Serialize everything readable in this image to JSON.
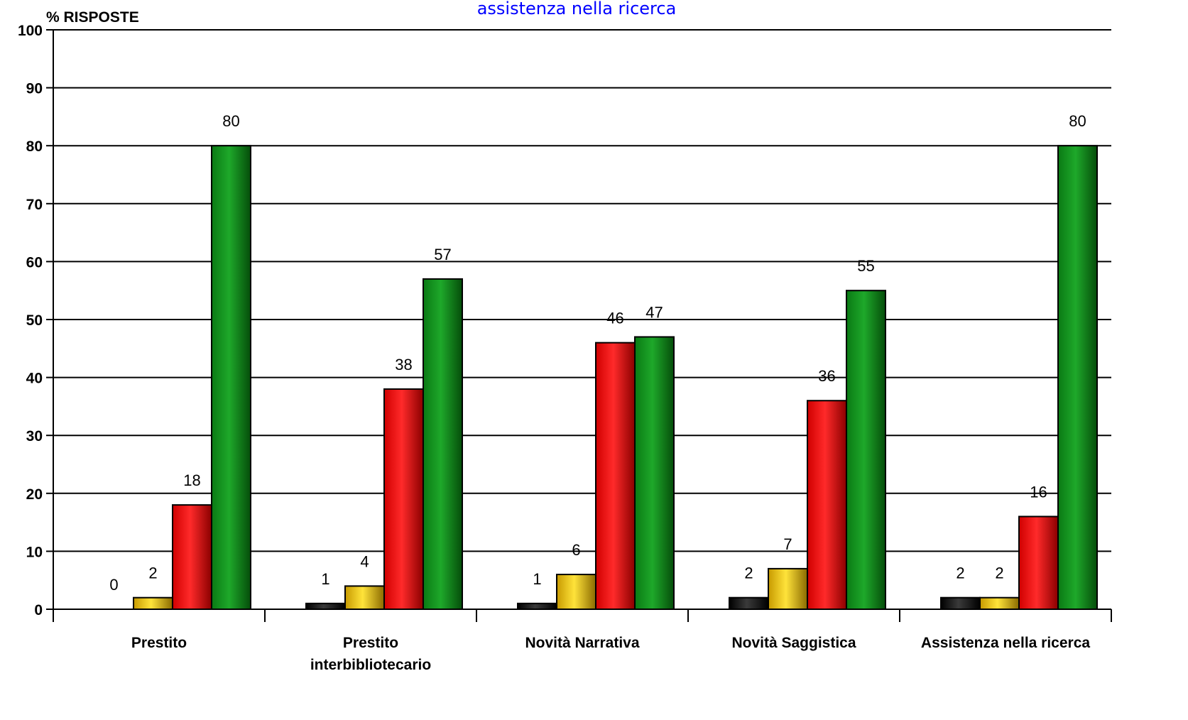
{
  "chart_data": {
    "type": "bar",
    "title": "assistenza nella ricerca",
    "ylabel": "% RISPOSTE",
    "xlabel": "",
    "ylim": [
      0,
      100
    ],
    "yticks": [
      0,
      10,
      20,
      30,
      40,
      50,
      60,
      70,
      80,
      90,
      100
    ],
    "grid": true,
    "categories": [
      [
        "Prestito"
      ],
      [
        "Prestito",
        "interbibliotecario"
      ],
      [
        "Novità Narrativa"
      ],
      [
        "Novità Saggistica"
      ],
      [
        "Assistenza nella ricerca"
      ]
    ],
    "series": [
      {
        "color": "#111111",
        "values": [
          0,
          1,
          1,
          2,
          2
        ]
      },
      {
        "color": "#e8c20a",
        "values": [
          2,
          4,
          6,
          7,
          2
        ]
      },
      {
        "color": "#e21010",
        "values": [
          18,
          38,
          46,
          36,
          16
        ]
      },
      {
        "color": "#108a1a",
        "values": [
          80,
          57,
          47,
          55,
          80
        ]
      }
    ],
    "data_labels": [
      [
        "0",
        "1",
        "1",
        "2",
        "2"
      ],
      [
        "2",
        "4",
        "6",
        "7",
        "2"
      ],
      [
        "18",
        "38",
        "46",
        "36",
        "16"
      ],
      [
        "80",
        "57",
        "47",
        "55",
        "80"
      ]
    ]
  }
}
